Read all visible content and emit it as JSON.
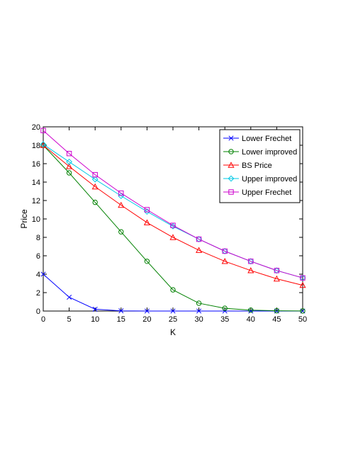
{
  "chart_data": {
    "type": "line",
    "title": "",
    "xlabel": "K",
    "ylabel": "Price",
    "xlim": [
      0,
      50
    ],
    "ylim": [
      0,
      20
    ],
    "xticks": [
      0,
      5,
      10,
      15,
      20,
      25,
      30,
      35,
      40,
      45,
      50
    ],
    "yticks": [
      0,
      2,
      4,
      6,
      8,
      10,
      12,
      14,
      16,
      18,
      20
    ],
    "grid": false,
    "legend_position": "top-right",
    "x": [
      0,
      5,
      10,
      15,
      20,
      25,
      30,
      35,
      40,
      45,
      50
    ],
    "series": [
      {
        "name": "Lower Frechet",
        "color": "#0000ff",
        "marker": "x",
        "values": [
          4.0,
          1.5,
          0.2,
          0.02,
          0.0,
          0.0,
          0.0,
          0.0,
          0.0,
          0.0,
          0.0
        ]
      },
      {
        "name": "Lower improved",
        "color": "#008000",
        "marker": "circle",
        "values": [
          18.0,
          15.0,
          11.8,
          8.6,
          5.4,
          2.3,
          0.85,
          0.3,
          0.1,
          0.03,
          0.01
        ]
      },
      {
        "name": "BS Price",
        "color": "#ff0000",
        "marker": "triangle",
        "values": [
          18.0,
          15.7,
          13.5,
          11.5,
          9.6,
          8.0,
          6.6,
          5.4,
          4.4,
          3.5,
          2.8
        ]
      },
      {
        "name": "Upper improved",
        "color": "#00c8e6",
        "marker": "diamond",
        "values": [
          18.1,
          16.2,
          14.3,
          12.5,
          10.8,
          9.2,
          7.8,
          6.5,
          5.4,
          4.4,
          3.6
        ]
      },
      {
        "name": "Upper Frechet",
        "color": "#cc00cc",
        "marker": "square",
        "values": [
          19.6,
          17.1,
          14.8,
          12.8,
          11.0,
          9.3,
          7.8,
          6.5,
          5.4,
          4.4,
          3.6
        ]
      }
    ]
  }
}
